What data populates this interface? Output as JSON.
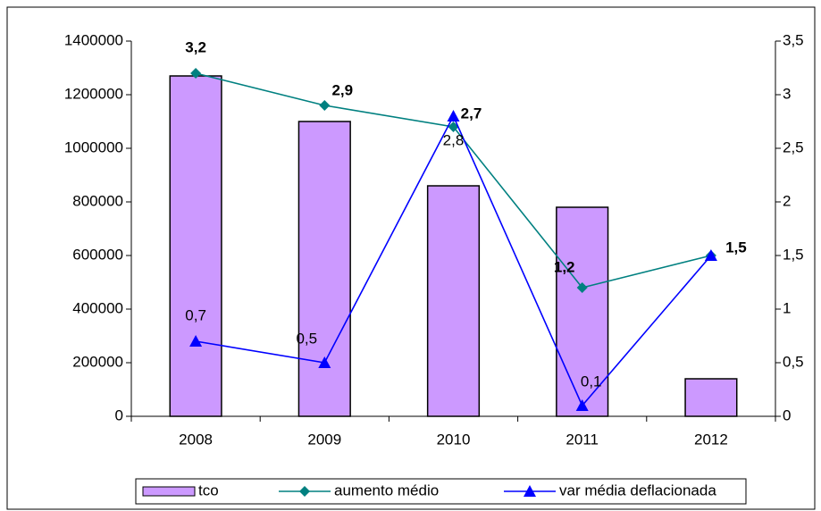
{
  "chart_data": {
    "type": "bar_line",
    "categories": [
      "2008",
      "2009",
      "2010",
      "2011",
      "2012"
    ],
    "series": [
      {
        "name": "tco",
        "type": "bar",
        "color": "#cc99ff",
        "values": [
          1270000,
          1100000,
          860000,
          780000,
          140000
        ]
      },
      {
        "name": "aumento médio",
        "type": "line",
        "axis": "y2",
        "color": "#008080",
        "marker": "diamond",
        "values": [
          3.2,
          2.9,
          2.7,
          1.2,
          1.5
        ],
        "value_labels": [
          "3,2",
          "2,9",
          "2,7",
          "1,2",
          "1,5"
        ]
      },
      {
        "name": "var média deflacionada",
        "type": "line",
        "axis": "y2",
        "color": "#0000ff",
        "marker": "triangle",
        "values": [
          0.7,
          0.5,
          2.8,
          0.1,
          1.5
        ],
        "value_labels": [
          "0,7",
          "0,5",
          "2,8",
          "0,1",
          null
        ]
      }
    ],
    "ylim": [
      0,
      1400000
    ],
    "yticks": [
      0,
      200000,
      400000,
      600000,
      800000,
      1000000,
      1200000,
      1400000
    ],
    "y2lim": [
      0,
      3.5
    ],
    "y2ticks": [
      0,
      {
        "value": 0.5,
        "label": "0,5"
      },
      1,
      {
        "value": 1.5,
        "label": "1,5"
      },
      2,
      {
        "value": 2.5,
        "label": "2,5"
      },
      3,
      {
        "value": 3.5,
        "label": "3,5"
      }
    ],
    "legend": "bottom"
  }
}
